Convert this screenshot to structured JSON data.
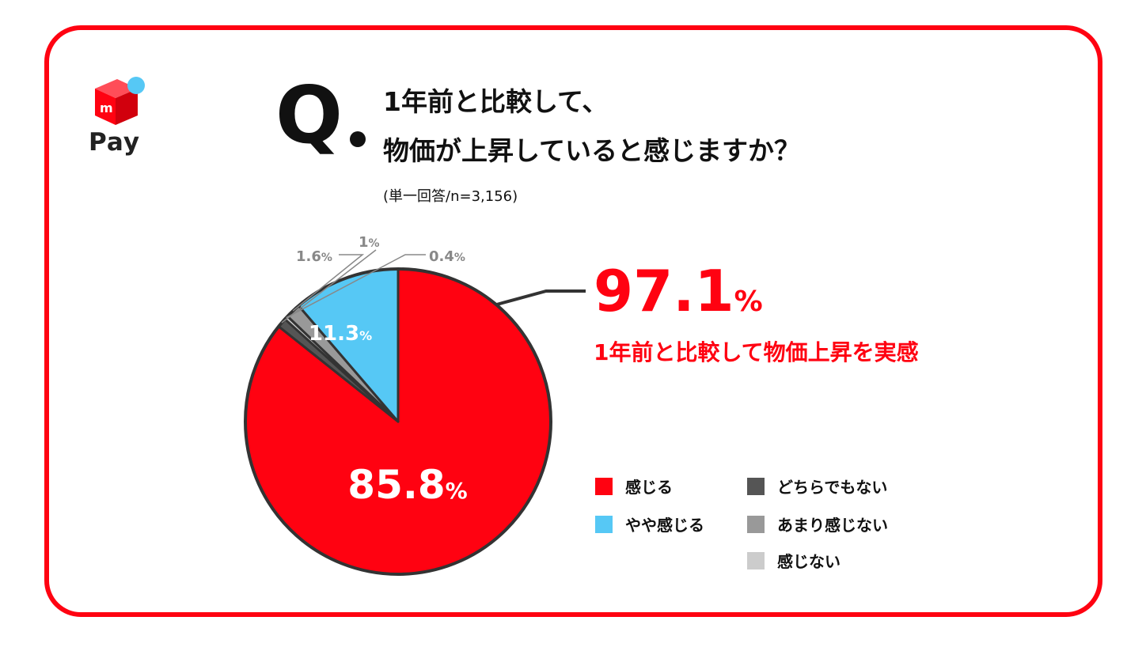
{
  "logo": {
    "label": "Pay"
  },
  "question": {
    "mark": "Q",
    "line1": "1年前と比較して、",
    "line2": "物価が上昇していると感じますか？",
    "note": "(単一回答/n=3,156)"
  },
  "headline": {
    "value": "97.1",
    "unit": "%",
    "caption": "1年前と比較して物価上昇を実感"
  },
  "colors": {
    "frame": "#ff0211",
    "feel": "#ff0211",
    "somewhat_feel": "#56c8f5",
    "neither": "#555555",
    "not_really": "#999999",
    "not_feel": "#cccccc"
  },
  "chart_data": {
    "type": "pie",
    "start_angle": "12 o'clock",
    "direction": "clockwise",
    "slices": [
      {
        "name": "感じる",
        "value": 85.8,
        "label": "85.8",
        "unit": "%",
        "color": "#ff0211"
      },
      {
        "name": "どちらでもない",
        "value": 1.0,
        "label": "1",
        "unit": "%",
        "color": "#555555"
      },
      {
        "name": "感じない",
        "value": 0.4,
        "label": "0.4",
        "unit": "%",
        "color": "#cccccc"
      },
      {
        "name": "あまり感じない",
        "value": 1.6,
        "label": "1.6",
        "unit": "%",
        "color": "#999999"
      },
      {
        "name": "やや感じる",
        "value": 11.3,
        "label": "11.3",
        "unit": "%",
        "color": "#56c8f5"
      }
    ],
    "legend": [
      {
        "name": "感じる",
        "color": "#ff0211"
      },
      {
        "name": "どちらでもない",
        "color": "#555555"
      },
      {
        "name": "やや感じる",
        "color": "#56c8f5"
      },
      {
        "name": "あまり感じない",
        "color": "#999999"
      },
      {
        "name": "感じない",
        "color": "#cccccc"
      }
    ],
    "legend_placement": "bottom-right"
  }
}
